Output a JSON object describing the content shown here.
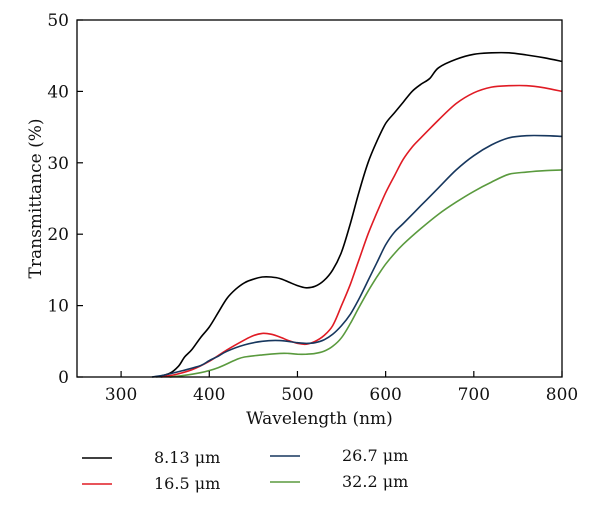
{
  "chart_data": {
    "type": "line",
    "xlabel": "Wavelength (nm)",
    "ylabel": "Transmittance (%)",
    "xlim": [
      250,
      800
    ],
    "ylim": [
      0,
      50
    ],
    "xticks": [
      "300",
      "400",
      "500",
      "600",
      "700",
      "800"
    ],
    "yticks": [
      "0",
      "10",
      "20",
      "30",
      "40",
      "50"
    ],
    "grid": false,
    "legend_position": "bottom",
    "series": [
      {
        "name": "8.13 μm",
        "color": "#000000",
        "x": [
          340,
          355,
          365,
          372,
          380,
          390,
          400,
          410,
          420,
          430,
          440,
          450,
          460,
          470,
          480,
          490,
          500,
          510,
          520,
          530,
          540,
          550,
          560,
          570,
          580,
          590,
          600,
          610,
          620,
          630,
          640,
          650,
          660,
          680,
          700,
          720,
          740,
          760,
          780,
          800
        ],
        "y": [
          0,
          0.5,
          1.5,
          2.8,
          3.8,
          5.5,
          7,
          9,
          11,
          12.3,
          13.2,
          13.7,
          14,
          14,
          13.8,
          13.3,
          12.8,
          12.5,
          12.7,
          13.5,
          15,
          17.5,
          21.5,
          26,
          30,
          33,
          35.5,
          37,
          38.5,
          40,
          41,
          41.8,
          43.3,
          44.5,
          45.2,
          45.4,
          45.4,
          45.1,
          44.7,
          44.2
        ]
      },
      {
        "name": "16.5 μm",
        "color": "#e01b24",
        "x": [
          345,
          360,
          380,
          400,
          420,
          440,
          450,
          460,
          470,
          480,
          490,
          500,
          510,
          520,
          530,
          540,
          550,
          560,
          570,
          580,
          590,
          600,
          610,
          620,
          630,
          640,
          660,
          680,
          700,
          720,
          740,
          760,
          780,
          800
        ],
        "y": [
          0,
          0.3,
          1,
          2.2,
          3.8,
          5.2,
          5.8,
          6.1,
          6,
          5.6,
          5.1,
          4.7,
          4.6,
          5,
          5.8,
          7.2,
          10,
          13,
          16.5,
          20,
          23,
          25.8,
          28.2,
          30.5,
          32.2,
          33.5,
          36,
          38.3,
          39.8,
          40.6,
          40.8,
          40.8,
          40.5,
          40
        ]
      },
      {
        "name": "26.7 μm",
        "color": "#17375e",
        "x": [
          335,
          350,
          370,
          390,
          400,
          410,
          420,
          440,
          460,
          480,
          500,
          510,
          520,
          530,
          540,
          550,
          560,
          570,
          580,
          590,
          600,
          610,
          620,
          640,
          660,
          680,
          700,
          720,
          740,
          760,
          780,
          800
        ],
        "y": [
          0,
          0.3,
          0.9,
          1.6,
          2.3,
          2.9,
          3.6,
          4.5,
          5,
          5.1,
          4.8,
          4.7,
          4.8,
          5.2,
          6,
          7.2,
          8.8,
          11,
          13.5,
          16,
          18.5,
          20.3,
          21.5,
          24,
          26.5,
          29,
          31,
          32.5,
          33.5,
          33.8,
          33.8,
          33.7
        ]
      },
      {
        "name": "32.2 μm",
        "color": "#5a9a3e",
        "x": [
          355,
          370,
          390,
          410,
          430,
          440,
          460,
          480,
          490,
          500,
          510,
          520,
          530,
          540,
          550,
          560,
          570,
          580,
          590,
          600,
          610,
          620,
          640,
          660,
          680,
          700,
          720,
          740,
          760,
          780,
          800
        ],
        "y": [
          0,
          0.2,
          0.6,
          1.3,
          2.4,
          2.8,
          3.1,
          3.3,
          3.3,
          3.2,
          3.2,
          3.3,
          3.6,
          4.3,
          5.5,
          7.5,
          9.8,
          12,
          14,
          15.8,
          17.3,
          18.6,
          20.8,
          22.8,
          24.5,
          26,
          27.3,
          28.4,
          28.7,
          28.9,
          29
        ]
      }
    ]
  }
}
